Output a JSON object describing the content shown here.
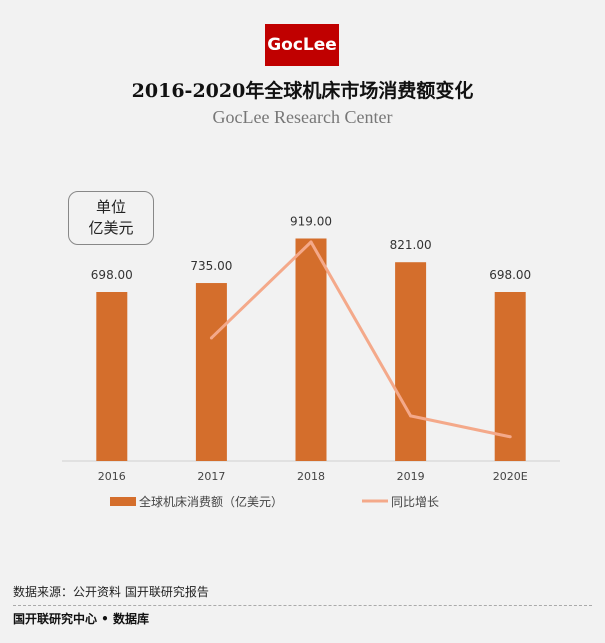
{
  "logo": {
    "text": "GocLee"
  },
  "header": {
    "title": "2016-2020年全球机床市场消费额变化",
    "subtitle": "GocLee Research Center"
  },
  "unit_box": {
    "line1": "单位",
    "line2": "亿美元"
  },
  "chart_data": {
    "type": "bar",
    "title": "2016-2020年全球机床市场消费额变化",
    "subtitle": "GocLee Research Center",
    "xlabel": "",
    "ylabel": "亿美元",
    "categories": [
      "2016",
      "2017",
      "2018",
      "2019",
      "2020E"
    ],
    "series": [
      {
        "name": "全球机床消费额（亿美元）",
        "type": "bar",
        "color": "#d46e2c",
        "values": [
          698.0,
          735.0,
          919.0,
          821.0,
          698.0
        ],
        "labels": [
          "698.00",
          "735.00",
          "919.00",
          "821.00",
          "698.00"
        ]
      },
      {
        "name": "同比增长",
        "type": "line",
        "color": "#f4a98a",
        "unit": "%",
        "values": [
          null,
          5.3,
          25.0,
          -10.7,
          -15.0
        ]
      }
    ],
    "ylim": [
      0,
      1000
    ],
    "y2lim": [
      -20,
      30
    ],
    "grid": false,
    "legend": "bottom"
  },
  "source": {
    "text": "数据来源：公开资料 国开联研究报告"
  },
  "footer": {
    "text": "国开联研究中心 • 数据库"
  }
}
